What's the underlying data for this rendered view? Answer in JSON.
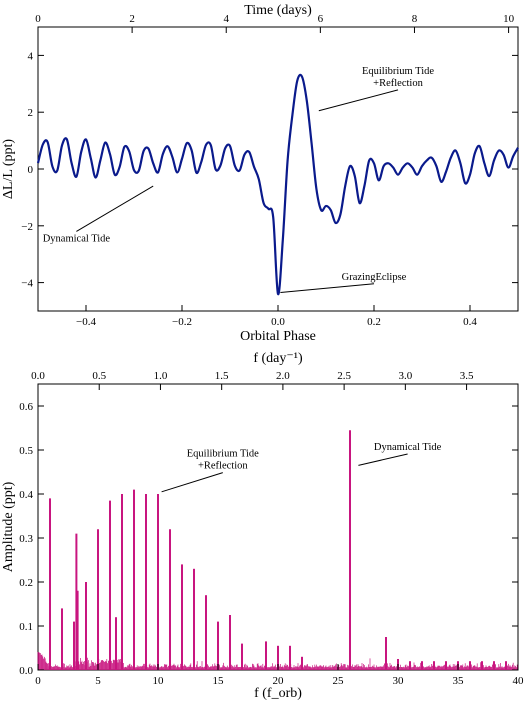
{
  "chart_data": [
    {
      "type": "line",
      "xlabel": "Orbital Phase",
      "ylabel": "ΔL/L (ppt)",
      "top_xlabel": "Time (days)",
      "xlim": [
        -0.5,
        0.5
      ],
      "ylim": [
        -5,
        5
      ],
      "top_xlim": [
        0,
        10.2
      ],
      "x_ticks": [
        -0.4,
        -0.2,
        0.0,
        0.2,
        0.4
      ],
      "x_tick_labels": [
        "−0.4",
        "−0.2",
        "0.0",
        "0.2",
        "0.4"
      ],
      "y_ticks": [
        -4,
        -2,
        0,
        2,
        4
      ],
      "y_tick_labels": [
        "−4",
        "−2",
        "0",
        "2",
        "4"
      ],
      "top_ticks": [
        0,
        2,
        4,
        6,
        8,
        10
      ],
      "top_tick_labels": [
        "0",
        "2",
        "4",
        "6",
        "8",
        "10"
      ],
      "color": "#0a1a8c",
      "series": [
        {
          "x": [
            -0.5,
            -0.49,
            -0.48,
            -0.47,
            -0.46,
            -0.45,
            -0.44,
            -0.43,
            -0.42,
            -0.41,
            -0.4,
            -0.39,
            -0.38,
            -0.37,
            -0.36,
            -0.35,
            -0.34,
            -0.33,
            -0.32,
            -0.31,
            -0.3,
            -0.29,
            -0.28,
            -0.27,
            -0.26,
            -0.25,
            -0.24,
            -0.23,
            -0.22,
            -0.21,
            -0.2,
            -0.19,
            -0.18,
            -0.17,
            -0.16,
            -0.15,
            -0.14,
            -0.13,
            -0.12,
            -0.11,
            -0.1,
            -0.09,
            -0.08,
            -0.07,
            -0.06,
            -0.05,
            -0.04,
            -0.03,
            -0.02,
            -0.01,
            0.0,
            0.01,
            0.02,
            0.03,
            0.04,
            0.05,
            0.06,
            0.07,
            0.08,
            0.09,
            0.1,
            0.11,
            0.12,
            0.13,
            0.14,
            0.15,
            0.16,
            0.17,
            0.18,
            0.19,
            0.2,
            0.21,
            0.22,
            0.23,
            0.24,
            0.25,
            0.26,
            0.27,
            0.28,
            0.29,
            0.3,
            0.31,
            0.32,
            0.33,
            0.34,
            0.35,
            0.36,
            0.37,
            0.38,
            0.39,
            0.4,
            0.41,
            0.42,
            0.43,
            0.44,
            0.45,
            0.46,
            0.47,
            0.48,
            0.49,
            0.5
          ],
          "y": [
            0.21,
            0.86,
            0.95,
            0.09,
            -0.06,
            0.83,
            1.05,
            0.21,
            -0.27,
            0.6,
            1.04,
            0.38,
            -0.3,
            0.31,
            0.93,
            0.52,
            -0.2,
            0.07,
            0.78,
            0.62,
            -0.04,
            -0.06,
            0.63,
            0.72,
            0.2,
            -0.12,
            0.52,
            0.8,
            0.42,
            -0.12,
            0.36,
            0.91,
            0.66,
            -0.13,
            0.24,
            0.85,
            0.84,
            -0.01,
            0.12,
            0.73,
            0.81,
            0.12,
            -0.05,
            0.5,
            0.6,
            0.08,
            -0.36,
            -1.2,
            -1.4,
            -1.7,
            -4.4,
            -2.5,
            0.3,
            1.9,
            3.1,
            3.25,
            2.4,
            0.9,
            -0.7,
            -1.45,
            -1.3,
            -1.45,
            -1.9,
            -1.6,
            -0.6,
            0.1,
            -0.25,
            -1.2,
            -0.6,
            0.3,
            0.2,
            -0.4,
            0.1,
            0.2,
            0.05,
            -0.2,
            0.05,
            0.2,
            0.05,
            -0.2,
            0.1,
            0.3,
            0.4,
            0.1,
            -0.45,
            -0.1,
            0.4,
            0.65,
            0.2,
            -0.5,
            -0.2,
            0.55,
            0.8,
            0.2,
            -0.25,
            0.3,
            0.65,
            0.5,
            0.05,
            0.45,
            0.75
          ]
        }
      ],
      "annotations": [
        {
          "text": "Equilibrium Tide",
          "text2": "+Reflection",
          "tx": 0.25,
          "ty": 3.35,
          "ax": 0.085,
          "ay": 2.05
        },
        {
          "text": "Dynamical Tide",
          "text2": "",
          "tx": -0.42,
          "ty": -2.55,
          "ax": -0.26,
          "ay": -0.6
        },
        {
          "text": "GrazingEclipse",
          "text2": "",
          "tx": 0.2,
          "ty": -3.9,
          "ax": 0.005,
          "ay": -4.35
        }
      ]
    },
    {
      "type": "bar",
      "xlabel": "f (f_orb)",
      "ylabel": "Amplitude (ppt)",
      "top_xlabel": "f (day⁻¹)",
      "xlim": [
        0,
        40
      ],
      "ylim": [
        0,
        0.65
      ],
      "top_xlim": [
        0,
        3.92
      ],
      "x_ticks": [
        0,
        5,
        10,
        15,
        20,
        25,
        30,
        35,
        40
      ],
      "x_tick_labels": [
        "0",
        "5",
        "10",
        "15",
        "20",
        "25",
        "30",
        "35",
        "40"
      ],
      "y_ticks": [
        0.0,
        0.1,
        0.2,
        0.3,
        0.4,
        0.5,
        0.6
      ],
      "y_tick_labels": [
        "0.0",
        "0.1",
        "0.2",
        "0.3",
        "0.4",
        "0.5",
        "0.6"
      ],
      "top_ticks": [
        0.0,
        0.5,
        1.0,
        1.5,
        2.0,
        2.5,
        3.0,
        3.5
      ],
      "top_tick_labels": [
        "0.0",
        "0.5",
        "1.0",
        "1.5",
        "2.0",
        "2.5",
        "3.0",
        "3.5"
      ],
      "color": "#c8157f",
      "peaks": {
        "x": [
          1,
          2,
          3,
          3.2,
          3.3,
          4,
          5,
          6,
          6.5,
          7,
          8,
          9,
          10,
          11,
          12,
          13,
          14,
          15,
          16,
          17,
          19,
          20,
          21,
          22,
          26,
          29,
          30,
          31,
          32,
          33,
          34,
          35,
          36,
          37,
          38,
          39
        ],
        "y": [
          0.39,
          0.14,
          0.11,
          0.31,
          0.18,
          0.2,
          0.32,
          0.385,
          0.12,
          0.4,
          0.41,
          0.4,
          0.4,
          0.32,
          0.24,
          0.23,
          0.17,
          0.11,
          0.125,
          0.06,
          0.065,
          0.055,
          0.055,
          0.03,
          0.545,
          0.075,
          0.025,
          0.02,
          0.02,
          0.02,
          0.02,
          0.02,
          0.02,
          0.02,
          0.02,
          0.02
        ]
      },
      "annotations": [
        {
          "text": "Equilibrium Tide",
          "text2": "+Reflection",
          "tx": 15.4,
          "ty": 0.485,
          "ax": 10.3,
          "ay": 0.405
        },
        {
          "text": "Dynamical Tide",
          "text2": "",
          "tx": 30.8,
          "ty": 0.5,
          "ax": 26.7,
          "ay": 0.465
        }
      ]
    }
  ]
}
